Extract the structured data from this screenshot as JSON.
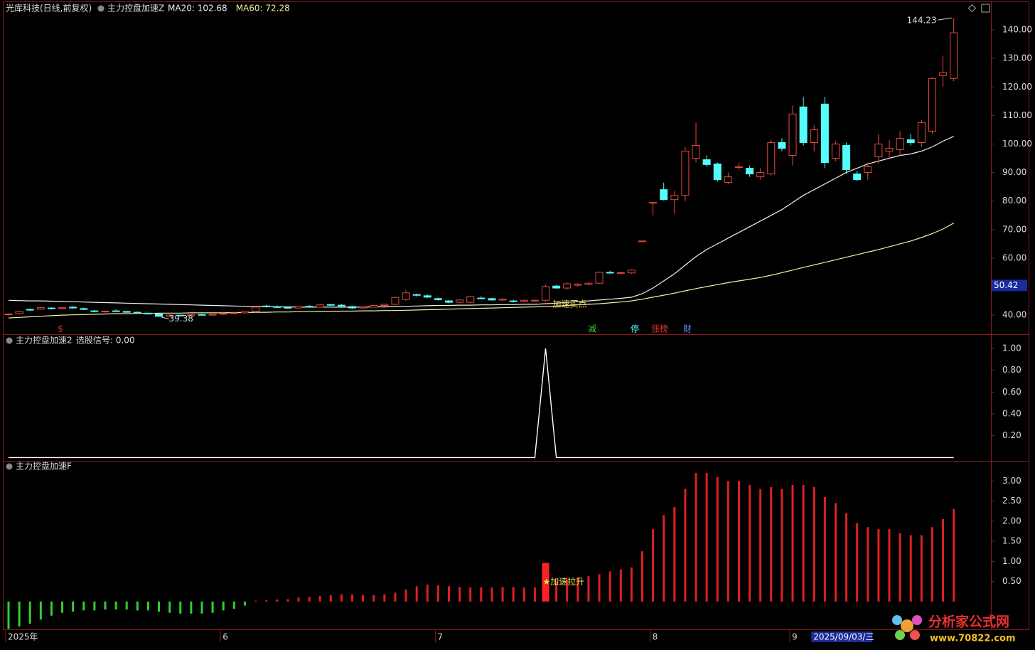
{
  "chart_data": [
    {
      "type": "candlestick",
      "title": "光库科技(日线,前复权)",
      "subtitle": "主力控盘加速Z",
      "up_color": "#e8483c",
      "down_color": "#54fcfc",
      "categories": [
        "2025年",
        null,
        null,
        null,
        null,
        null,
        null,
        null,
        null,
        null,
        null,
        null,
        null,
        null,
        null,
        null,
        null,
        null,
        null,
        null,
        "6",
        null,
        null,
        null,
        null,
        null,
        null,
        null,
        null,
        null,
        null,
        null,
        null,
        null,
        null,
        null,
        null,
        null,
        null,
        null,
        "7",
        null,
        null,
        null,
        null,
        null,
        null,
        null,
        null,
        null,
        null,
        null,
        null,
        null,
        null,
        null,
        null,
        null,
        null,
        null,
        "8",
        null,
        null,
        null,
        null,
        null,
        null,
        null,
        null,
        null,
        null,
        null,
        null,
        "9",
        null,
        "2025/09/03/三",
        null,
        null,
        null,
        null,
        null,
        null,
        null,
        null,
        null,
        null,
        null,
        null,
        null
      ],
      "candles": [
        [
          40.2,
          40.6,
          39.8,
          40.4
        ],
        [
          40.5,
          41.5,
          40.2,
          41.3
        ],
        [
          42.0,
          42.4,
          41.5,
          41.8
        ],
        [
          42.1,
          42.8,
          41.9,
          42.6
        ],
        [
          42.5,
          42.7,
          42.0,
          42.3
        ],
        [
          42.4,
          42.8,
          42.1,
          42.7
        ],
        [
          42.8,
          43.2,
          42.3,
          42.5
        ],
        [
          42.3,
          42.6,
          41.8,
          42.0
        ],
        [
          41.5,
          41.8,
          41.0,
          41.3
        ],
        [
          41.2,
          41.6,
          40.9,
          41.4
        ],
        [
          41.5,
          42.0,
          41.2,
          41.3
        ],
        [
          41.3,
          41.5,
          40.8,
          41.0
        ],
        [
          41.0,
          41.3,
          40.5,
          40.7
        ],
        [
          40.7,
          40.9,
          40.2,
          40.4
        ],
        [
          40.4,
          40.6,
          39.38,
          39.6
        ],
        [
          39.6,
          40.2,
          39.4,
          40.0
        ],
        [
          40.0,
          40.1,
          39.5,
          39.8
        ],
        [
          39.8,
          40.3,
          39.6,
          40.2
        ],
        [
          40.2,
          40.5,
          39.8,
          40.0
        ],
        [
          40.0,
          40.4,
          39.8,
          40.3
        ],
        [
          40.3,
          40.8,
          40.0,
          40.6
        ],
        [
          40.6,
          41.2,
          40.3,
          40.8
        ],
        [
          40.8,
          41.5,
          40.6,
          41.3
        ],
        [
          41.3,
          43.0,
          41.0,
          42.8
        ],
        [
          43.2,
          43.6,
          42.6,
          43.0
        ],
        [
          43.0,
          43.4,
          42.5,
          42.7
        ],
        [
          42.7,
          43.0,
          42.2,
          42.5
        ],
        [
          42.5,
          43.3,
          42.3,
          43.1
        ],
        [
          43.1,
          43.5,
          42.6,
          42.8
        ],
        [
          42.8,
          43.8,
          42.6,
          43.6
        ],
        [
          43.7,
          44.0,
          43.3,
          43.5
        ],
        [
          43.5,
          44.0,
          42.9,
          43.2
        ],
        [
          43.0,
          43.3,
          42.2,
          42.5
        ],
        [
          42.5,
          43.0,
          42.3,
          42.8
        ],
        [
          42.8,
          43.6,
          42.6,
          43.4
        ],
        [
          43.4,
          44.0,
          43.0,
          43.8
        ],
        [
          43.8,
          46.5,
          43.5,
          46.2
        ],
        [
          45.5,
          48.8,
          45.0,
          47.8
        ],
        [
          47.2,
          47.6,
          46.5,
          47.0
        ],
        [
          46.8,
          47.2,
          46.0,
          46.3
        ],
        [
          45.8,
          46.2,
          45.1,
          45.4
        ],
        [
          45.0,
          45.3,
          44.2,
          44.5
        ],
        [
          44.5,
          45.5,
          44.2,
          45.3
        ],
        [
          44.5,
          46.8,
          44.2,
          46.5
        ],
        [
          46.0,
          46.6,
          45.6,
          45.8
        ],
        [
          45.8,
          46.0,
          45.1,
          45.3
        ],
        [
          45.3,
          45.9,
          44.9,
          45.6
        ],
        [
          45.0,
          45.4,
          44.4,
          44.8
        ],
        [
          44.8,
          45.5,
          44.5,
          45.2
        ],
        [
          45.0,
          45.5,
          44.6,
          45.2
        ],
        [
          45.2,
          50.8,
          44.8,
          50.0
        ],
        [
          50.2,
          50.6,
          49.2,
          49.5
        ],
        [
          49.5,
          51.5,
          49.0,
          51.0
        ],
        [
          50.5,
          51.3,
          50.0,
          50.8
        ],
        [
          50.8,
          51.6,
          50.4,
          51.2
        ],
        [
          51.2,
          55.3,
          51.0,
          55.0
        ],
        [
          55.0,
          55.6,
          54.5,
          54.8
        ],
        [
          54.8,
          55.2,
          54.4,
          54.9
        ],
        [
          54.8,
          56.0,
          54.5,
          55.8
        ],
        [
          66.0,
          66.0,
          66.0,
          66.0
        ],
        [
          79.5,
          79.7,
          75.0,
          79.5
        ],
        [
          84.0,
          86.5,
          80.2,
          80.5
        ],
        [
          80.5,
          83.5,
          75.5,
          82.0
        ],
        [
          82.0,
          99.0,
          80.0,
          97.5
        ],
        [
          95.0,
          107.5,
          93.5,
          99.5
        ],
        [
          94.5,
          96.0,
          92.0,
          92.8
        ],
        [
          93.0,
          93.5,
          86.8,
          87.5
        ],
        [
          86.5,
          90.0,
          86.0,
          88.5
        ],
        [
          92.0,
          93.5,
          91.0,
          92.0
        ],
        [
          91.5,
          92.5,
          88.5,
          89.5
        ],
        [
          88.5,
          91.5,
          87.5,
          90.0
        ],
        [
          89.5,
          101.5,
          89.0,
          100.5
        ],
        [
          100.5,
          102.0,
          97.5,
          98.5
        ],
        [
          96.0,
          113.5,
          92.5,
          110.5
        ],
        [
          113.0,
          116.5,
          99.5,
          100.5
        ],
        [
          100.5,
          106.5,
          97.5,
          105.0
        ],
        [
          114.0,
          116.5,
          91.5,
          93.5
        ],
        [
          95.0,
          101.0,
          94.0,
          100.0
        ],
        [
          99.5,
          100.5,
          89.5,
          91.0
        ],
        [
          89.5,
          90.5,
          87.0,
          87.5
        ],
        [
          90.0,
          93.5,
          87.5,
          92.0
        ],
        [
          95.5,
          103.5,
          93.0,
          100.0
        ],
        [
          97.5,
          101.5,
          95.0,
          98.5
        ],
        [
          98.0,
          104.5,
          96.0,
          102.0
        ],
        [
          101.5,
          103.5,
          99.5,
          100.5
        ],
        [
          100.5,
          108.5,
          99.0,
          107.5
        ],
        [
          104.5,
          123.5,
          103.5,
          123.0
        ],
        [
          124.0,
          131.0,
          120.0,
          125.0
        ],
        [
          123.0,
          144.23,
          122.0,
          139.0
        ]
      ],
      "series": [
        {
          "name": "MA20: 102.68",
          "color": "#f0f0f0",
          "values": [
            45.2,
            45.1,
            45.0,
            45.0,
            44.9,
            44.8,
            44.7,
            44.6,
            44.5,
            44.4,
            44.3,
            44.2,
            44.1,
            44.0,
            43.9,
            43.8,
            43.7,
            43.6,
            43.5,
            43.4,
            43.3,
            43.2,
            43.1,
            43.0,
            43.0,
            42.9,
            42.9,
            42.8,
            42.8,
            42.8,
            42.8,
            42.8,
            42.8,
            42.8,
            42.9,
            42.9,
            43.0,
            43.1,
            43.2,
            43.3,
            43.4,
            43.4,
            43.5,
            43.5,
            43.6,
            43.6,
            43.7,
            43.7,
            43.8,
            43.8,
            44.0,
            44.2,
            44.5,
            44.8,
            45.0,
            45.3,
            45.6,
            45.9,
            46.3,
            47.5,
            49.5,
            52.0,
            54.5,
            57.5,
            60.5,
            63.0,
            65.0,
            67.0,
            69.0,
            71.0,
            73.0,
            75.0,
            77.0,
            79.5,
            82.0,
            84.0,
            86.0,
            88.0,
            90.0,
            91.5,
            93.0,
            94.0,
            95.0,
            96.0,
            96.5,
            97.5,
            99.0,
            101.0,
            102.68
          ]
        },
        {
          "name": "MA60: 72.28",
          "color": "#f4f0a0",
          "values": [
            39.0,
            39.2,
            39.4,
            39.6,
            39.8,
            40.0,
            40.1,
            40.2,
            40.3,
            40.4,
            40.5,
            40.5,
            40.6,
            40.6,
            40.7,
            40.7,
            40.7,
            40.8,
            40.8,
            40.8,
            40.8,
            40.9,
            40.9,
            41.0,
            41.0,
            41.1,
            41.1,
            41.2,
            41.2,
            41.3,
            41.3,
            41.4,
            41.4,
            41.5,
            41.5,
            41.6,
            41.6,
            41.7,
            41.8,
            41.9,
            42.0,
            42.1,
            42.2,
            42.3,
            42.4,
            42.5,
            42.6,
            42.7,
            42.8,
            42.9,
            43.0,
            43.2,
            43.4,
            43.6,
            43.8,
            44.0,
            44.3,
            44.6,
            45.0,
            45.6,
            46.3,
            47.0,
            47.7,
            48.5,
            49.3,
            50.0,
            50.7,
            51.4,
            52.0,
            52.6,
            53.2,
            54.0,
            54.9,
            55.8,
            56.7,
            57.6,
            58.5,
            59.4,
            60.3,
            61.2,
            62.1,
            63.0,
            64.0,
            65.0,
            66.0,
            67.2,
            68.6,
            70.2,
            72.28
          ]
        }
      ],
      "signal_label": "加速买点",
      "cursor_price": 50.42,
      "events": [
        "$",
        "减",
        "停",
        "涨榜",
        "财"
      ],
      "ylim": [
        33.3,
        145.5
      ],
      "yticks": [
        {
          "value": 40,
          "label": "40.00"
        },
        {
          "value": 50,
          "label": "50.00"
        },
        {
          "value": 60,
          "label": "60.00"
        },
        {
          "value": 70,
          "label": "70.00"
        },
        {
          "value": 80,
          "label": "80.00"
        },
        {
          "value": 90,
          "label": "90.00"
        },
        {
          "value": 100,
          "label": "100.00"
        },
        {
          "value": 110,
          "label": "110.00"
        },
        {
          "value": 120,
          "label": "120.00"
        },
        {
          "value": 130,
          "label": "130.00"
        },
        {
          "value": 140,
          "label": "140.00"
        }
      ]
    },
    {
      "type": "line",
      "title": "主力控盘加速2",
      "subtitle": "选股信号: 0.00",
      "series": [
        {
          "color": "#ffffff",
          "values": [
            0,
            0,
            0,
            0,
            0,
            0,
            0,
            0,
            0,
            0,
            0,
            0,
            0,
            0,
            0,
            0,
            0,
            0,
            0,
            0,
            0,
            0,
            0,
            0,
            0,
            0,
            0,
            0,
            0,
            0,
            0,
            0,
            0,
            0,
            0,
            0,
            0,
            0,
            0,
            0,
            0,
            0,
            0,
            0,
            0,
            0,
            0,
            0,
            0,
            0,
            1,
            0,
            0,
            0,
            0,
            0,
            0,
            0,
            0,
            0,
            0,
            0,
            0,
            0,
            0,
            0,
            0,
            0,
            0,
            0,
            0,
            0,
            0,
            0,
            0,
            0,
            0,
            0,
            0,
            0,
            0,
            0,
            0,
            0,
            0,
            0,
            0,
            0,
            0
          ]
        }
      ],
      "ylim": [
        -0.03,
        1.13
      ],
      "yticks": [
        {
          "value": 0.2,
          "label": "0.20"
        },
        {
          "value": 0.4,
          "label": "0.40"
        },
        {
          "value": 0.6,
          "label": "0.60"
        },
        {
          "value": 0.8,
          "label": "0.80"
        },
        {
          "value": 1,
          "label": "1.00"
        }
      ]
    },
    {
      "type": "bar",
      "title": "主力控盘加速F",
      "signal_label": "★加速拉升",
      "up_color": "#e02020",
      "down_color": "#30d030",
      "values": [
        -0.68,
        -0.62,
        -0.55,
        -0.45,
        -0.35,
        -0.28,
        -0.25,
        -0.22,
        -0.22,
        -0.2,
        -0.2,
        -0.2,
        -0.22,
        -0.22,
        -0.25,
        -0.28,
        -0.3,
        -0.3,
        -0.3,
        -0.28,
        -0.22,
        -0.18,
        -0.1,
        0.02,
        0.03,
        0.05,
        0.06,
        0.1,
        0.12,
        0.14,
        0.16,
        0.18,
        0.18,
        0.16,
        0.16,
        0.18,
        0.22,
        0.3,
        0.38,
        0.42,
        0.4,
        0.38,
        0.36,
        0.35,
        0.35,
        0.35,
        0.36,
        0.36,
        0.35,
        0.35,
        0.96,
        0.5,
        0.55,
        0.6,
        0.63,
        0.68,
        0.75,
        0.8,
        0.85,
        1.25,
        1.8,
        2.15,
        2.35,
        2.8,
        3.2,
        3.2,
        3.1,
        3.0,
        3.0,
        2.9,
        2.8,
        2.85,
        2.8,
        2.9,
        2.9,
        2.85,
        2.6,
        2.45,
        2.2,
        1.95,
        1.85,
        1.8,
        1.8,
        1.7,
        1.65,
        1.65,
        1.85,
        2.05,
        2.3
      ],
      "ylim": [
        -0.71,
        3.5
      ],
      "yticks": [
        {
          "value": 0.5,
          "label": "0.50"
        },
        {
          "value": 1,
          "label": "1.00"
        },
        {
          "value": 1.5,
          "label": "1.50"
        },
        {
          "value": 2,
          "label": "2.00"
        },
        {
          "value": 2.5,
          "label": "2.50"
        },
        {
          "value": 3,
          "label": "3.00"
        }
      ]
    }
  ],
  "watermark": {
    "title": "分析家公式网",
    "url": "www.70822.com"
  }
}
